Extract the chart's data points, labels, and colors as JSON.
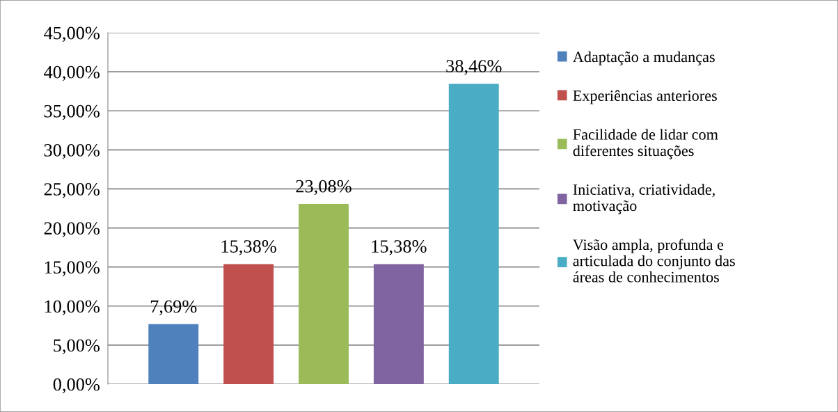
{
  "chart_data": {
    "type": "bar",
    "categories": [
      null
    ],
    "series": [
      {
        "name": "Adaptação a mudanças",
        "color": "#4f81bd",
        "values": [
          7.69
        ],
        "value_labels": [
          "7,69%"
        ]
      },
      {
        "name": "Experiências anteriores",
        "color": "#c0504d",
        "values": [
          15.38
        ],
        "value_labels": [
          "15,38%"
        ]
      },
      {
        "name": "Facilidade de lidar com diferentes situações",
        "color": "#9bbb59",
        "values": [
          23.08
        ],
        "value_labels": [
          "23,08%"
        ]
      },
      {
        "name": "Iniciativa, criatividade, motivação",
        "color": "#8064a2",
        "values": [
          15.38
        ],
        "value_labels": [
          "15,38%"
        ]
      },
      {
        "name": "Visão ampla, profunda e articulada do conjunto das áreas de conhecimentos",
        "color": "#4bacc6",
        "values": [
          38.46
        ],
        "value_labels": [
          "38,46%"
        ]
      }
    ],
    "ylim": [
      0,
      45
    ],
    "yticks": [
      {
        "value": 0,
        "label": "0,00%"
      },
      {
        "value": 5,
        "label": "5,00%"
      },
      {
        "value": 10,
        "label": "10,00%"
      },
      {
        "value": 15,
        "label": "15,00%"
      },
      {
        "value": 20,
        "label": "20,00%"
      },
      {
        "value": 25,
        "label": "25,00%"
      },
      {
        "value": 30,
        "label": "30,00%"
      },
      {
        "value": 35,
        "label": "35,00%"
      },
      {
        "value": 40,
        "label": "40,00%"
      },
      {
        "value": 45,
        "label": "45,00%"
      }
    ],
    "grid": "y",
    "legend": "right"
  }
}
